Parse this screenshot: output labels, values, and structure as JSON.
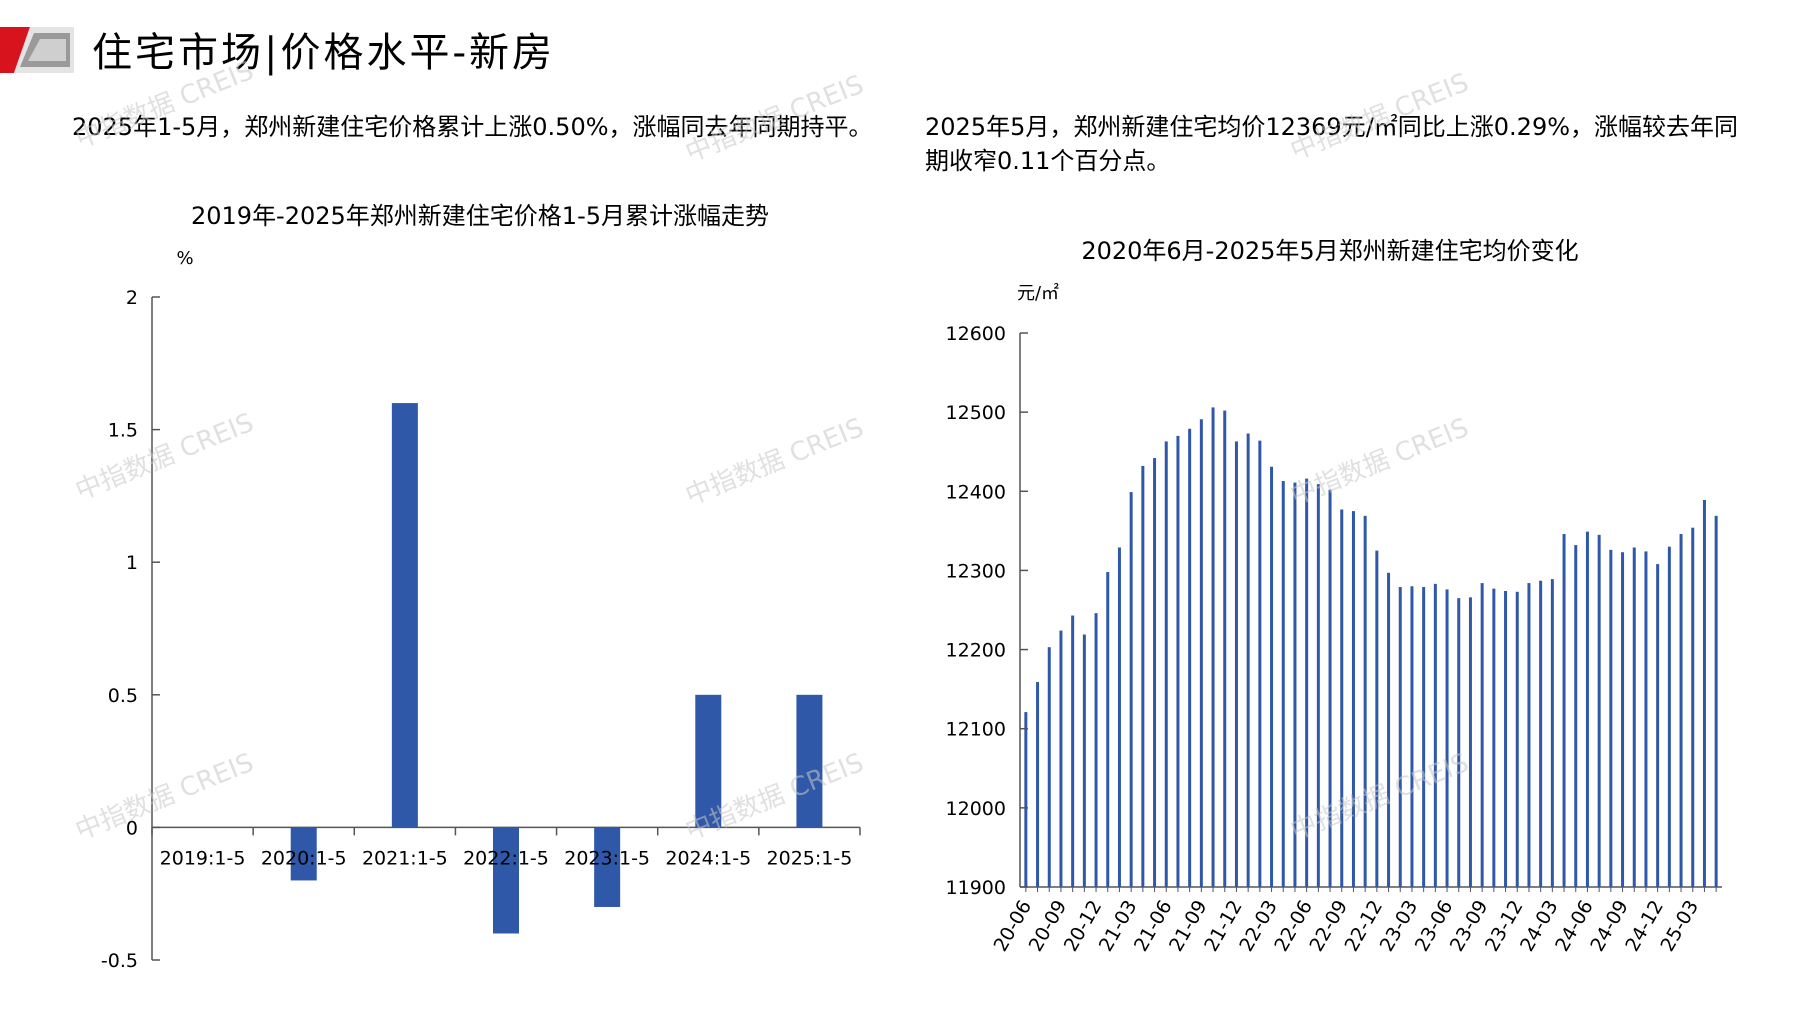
{
  "header": {
    "title": "住宅市场|价格水平-新房"
  },
  "summary": {
    "left": "2025年1-5月，郑州新建住宅价格累计上涨0.50%，涨幅同去年同期持平。",
    "right": "2025年5月，郑州新建住宅均价12369元/㎡同比上涨0.29%，涨幅较去年同期收窄0.11个百分点。"
  },
  "watermark": "中指数据 CREIS",
  "colors": {
    "bar": "#2f58a8",
    "axis": "#555555",
    "logo_red": "#d7131e",
    "logo_gray": "#8c8c8c"
  },
  "chart_data": [
    {
      "type": "bar",
      "title": "2019年-2025年郑州新建住宅价格1-5月累计涨幅走势",
      "ylabel": "%",
      "categories": [
        "2019:1-5",
        "2020:1-5",
        "2021:1-5",
        "2022:1-5",
        "2023:1-5",
        "2024:1-5",
        "2025:1-5"
      ],
      "values": [
        0,
        -0.2,
        1.6,
        -0.4,
        -0.3,
        0.5,
        0.5
      ],
      "ylim": [
        -0.5,
        2
      ],
      "yticks": [
        -0.5,
        0,
        0.5,
        1,
        1.5,
        2
      ],
      "ytick_labels": [
        "-0.5",
        "0",
        "0.5",
        "1",
        "1.5",
        "2"
      ],
      "grid": false,
      "legend": "none"
    },
    {
      "type": "bar",
      "title": "2020年6月-2025年5月郑州新建住宅均价变化",
      "ylabel": "元/㎡",
      "x_tick_labels": [
        "20-06",
        "20-09",
        "20-12",
        "21-03",
        "21-06",
        "21-09",
        "21-12",
        "22-03",
        "22-06",
        "22-09",
        "22-12",
        "23-03",
        "23-06",
        "23-09",
        "23-12",
        "24-03",
        "24-06",
        "24-09",
        "24-12",
        "25-03"
      ],
      "x": [
        "20-06",
        "20-07",
        "20-08",
        "20-09",
        "20-10",
        "20-11",
        "20-12",
        "21-01",
        "21-02",
        "21-03",
        "21-04",
        "21-05",
        "21-06",
        "21-07",
        "21-08",
        "21-09",
        "21-10",
        "21-11",
        "21-12",
        "22-01",
        "22-02",
        "22-03",
        "22-04",
        "22-05",
        "22-06",
        "22-07",
        "22-08",
        "22-09",
        "22-10",
        "22-11",
        "22-12",
        "23-01",
        "23-02",
        "23-03",
        "23-04",
        "23-05",
        "23-06",
        "23-07",
        "23-08",
        "23-09",
        "23-10",
        "23-11",
        "23-12",
        "24-01",
        "24-02",
        "24-03",
        "24-04",
        "24-05",
        "24-06",
        "24-07",
        "24-08",
        "24-09",
        "24-10",
        "24-11",
        "24-12",
        "25-01",
        "25-02",
        "25-03",
        "25-04",
        "25-05"
      ],
      "values": [
        12121,
        12159,
        12203,
        12224,
        12243,
        12219,
        12246,
        12298,
        12329,
        12399,
        12432,
        12442,
        12463,
        12470,
        12479,
        12491,
        12506,
        12502,
        12463,
        12473,
        12464,
        12431,
        12413,
        12411,
        12416,
        12409,
        12402,
        12377,
        12375,
        12369,
        12325,
        12297,
        12279,
        12280,
        12279,
        12283,
        12276,
        12265,
        12266,
        12284,
        12277,
        12274,
        12273,
        12284,
        12287,
        12289,
        12346,
        12332,
        12349,
        12345,
        12326,
        12323,
        12329,
        12324,
        12308,
        12330,
        12346,
        12354,
        12389,
        12369
      ],
      "ylim": [
        11900,
        12600
      ],
      "yticks": [
        11900,
        12000,
        12100,
        12200,
        12300,
        12400,
        12500,
        12600
      ],
      "ytick_labels": [
        "11900",
        "12000",
        "12100",
        "12200",
        "12300",
        "12400",
        "12500",
        "12600"
      ],
      "grid": false,
      "legend": "none"
    }
  ]
}
